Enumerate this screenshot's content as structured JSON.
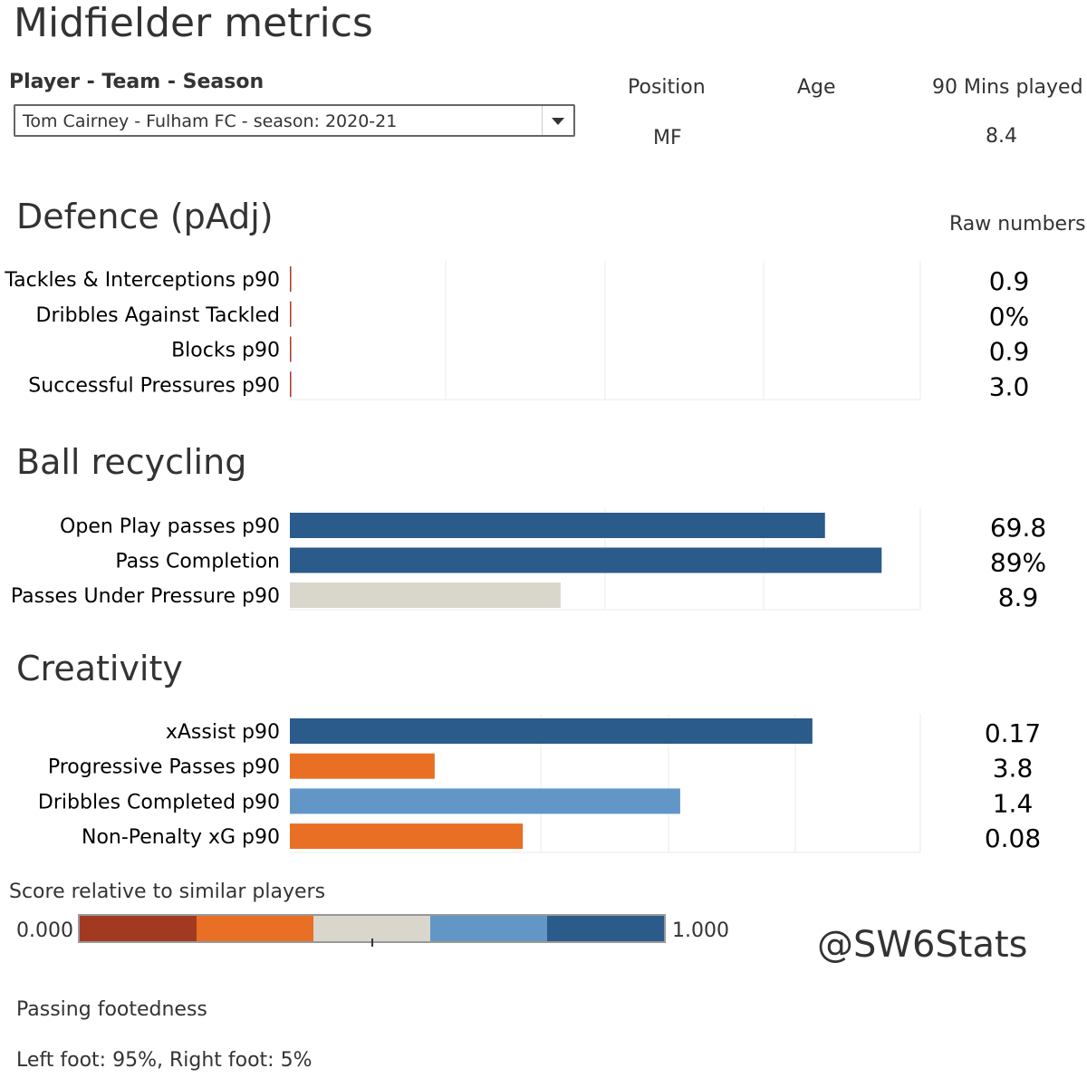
{
  "title": "Midfielder metrics",
  "filter": {
    "label": "Player - Team - Season",
    "selected": "Tom Cairney - Fulham FC - season: 2020-21"
  },
  "info": {
    "position_label": "Position",
    "position_value": "MF",
    "age_label": "Age",
    "age_value": "",
    "mins_label": "90 Mins played",
    "mins_value": "8.4"
  },
  "raw_numbers_label": "Raw numbers",
  "colors": {
    "very_low": "#a13a21",
    "low": "#e86f24",
    "mid": "#d9d6cc",
    "high": "#6196c6",
    "very_high": "#2b5b8a"
  },
  "chart_data": [
    {
      "type": "bar",
      "orientation": "horizontal",
      "title": "Defence (pAdj)",
      "categories": [
        "Tackles & Interceptions p90",
        "Dribbles Against Tackled",
        "Blocks p90",
        "Successful Pressures p90"
      ],
      "values": [
        0.0,
        0.0,
        0.0,
        0.0
      ],
      "raw": [
        "0.9",
        "0%",
        "0.9",
        "3.0"
      ],
      "colors": [
        "#a13a21",
        "#a13a21",
        "#a13a21",
        "#a13a21"
      ],
      "xlim": [
        0,
        1
      ],
      "grid": true
    },
    {
      "type": "bar",
      "orientation": "horizontal",
      "title": "Ball recycling",
      "categories": [
        "Open Play passes p90",
        "Pass Completion",
        "Passes Under Pressure p90"
      ],
      "values": [
        0.85,
        0.94,
        0.43
      ],
      "raw": [
        "69.8",
        "89%",
        "8.9"
      ],
      "colors": [
        "#2b5b8a",
        "#2b5b8a",
        "#d9d6cc"
      ],
      "xlim": [
        0,
        1
      ],
      "grid": true
    },
    {
      "type": "bar",
      "orientation": "horizontal",
      "title": "Creativity",
      "categories": [
        "xAssist p90",
        "Progressive Passes p90",
        "Dribbles Completed p90",
        "Non-Penalty xG p90"
      ],
      "values": [
        0.83,
        0.23,
        0.62,
        0.37
      ],
      "raw": [
        "0.17",
        "3.8",
        "1.4",
        "0.08"
      ],
      "colors": [
        "#2b5b8a",
        "#e86f24",
        "#6196c6",
        "#e86f24"
      ],
      "xlim": [
        0,
        1
      ],
      "grid": true
    }
  ],
  "legend": {
    "title": "Score relative to similar players",
    "min_label": "0.000",
    "max_label": "1.000",
    "marker_value": 0.5
  },
  "watermark": "@SW6Stats",
  "footedness": {
    "title": "Passing footedness",
    "value": "Left foot: 95%, Right foot: 5%"
  }
}
